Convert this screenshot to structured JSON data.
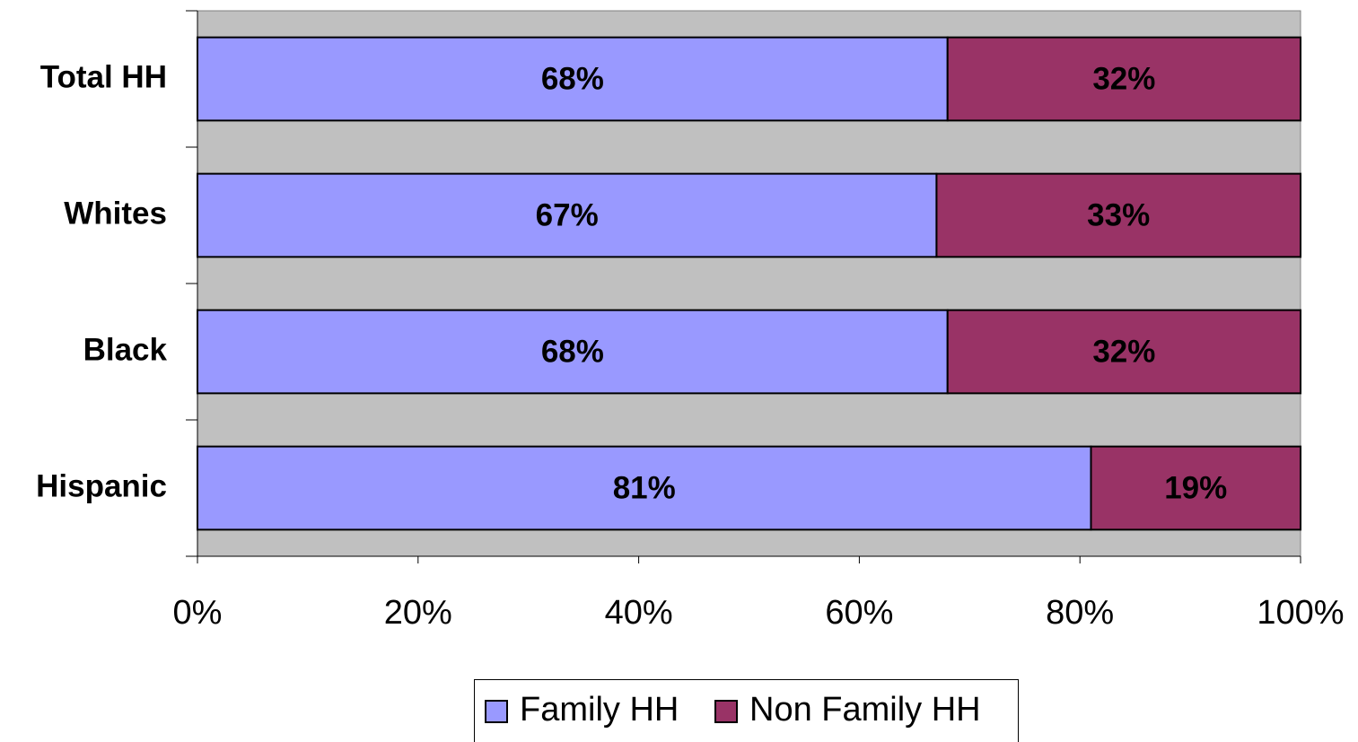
{
  "chart_data": {
    "type": "stacked_barh",
    "categories": [
      "Total HH",
      "Whites",
      "Black",
      "Hispanic"
    ],
    "series": [
      {
        "name": "Family HH",
        "color": "#9999ff",
        "values": [
          68,
          67,
          68,
          81
        ],
        "value_labels": [
          "68%",
          "67%",
          "68%",
          "81%"
        ]
      },
      {
        "name": "Non Family HH",
        "color": "#993366",
        "values": [
          32,
          33,
          32,
          19
        ],
        "value_labels": [
          "32%",
          "33%",
          "32%",
          "19%"
        ]
      }
    ],
    "xlim": [
      0,
      100
    ],
    "xticks": [
      {
        "value": 0,
        "label": "0%"
      },
      {
        "value": 20,
        "label": "20%"
      },
      {
        "value": 40,
        "label": "40%"
      },
      {
        "value": 60,
        "label": "60%"
      },
      {
        "value": 80,
        "label": "80%"
      },
      {
        "value": 100,
        "label": "100%"
      }
    ],
    "plot_background": "#c0c0c0",
    "legend": "bottom"
  }
}
